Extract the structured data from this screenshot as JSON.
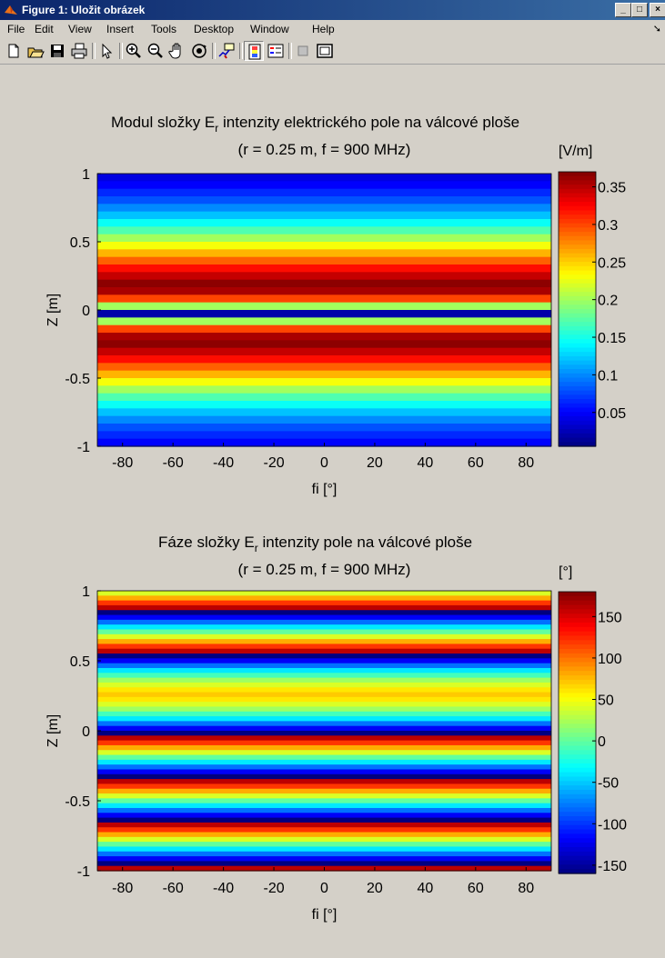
{
  "window": {
    "title": "Figure 1: Uložit obrázek",
    "controls": [
      "_",
      "□",
      "×"
    ]
  },
  "menu": {
    "items": [
      {
        "label": "File"
      },
      {
        "label": "Edit"
      },
      {
        "label": "View"
      },
      {
        "label": "Insert"
      },
      {
        "label": "Tools"
      },
      {
        "label": "Desktop"
      },
      {
        "label": "Window"
      },
      {
        "label": "Help"
      }
    ]
  },
  "toolbar": {
    "icons": [
      "new-figure-icon",
      "open-file-icon",
      "save-figure-icon",
      "print-figure-icon",
      "edit-plot-icon",
      "zoom-in-icon",
      "zoom-out-icon",
      "pan-icon",
      "rotate-3d-icon",
      "data-cursor-icon",
      "insert-colorbar-icon",
      "insert-legend-icon",
      "hide-plot-tools-icon",
      "show-plot-tools-icon"
    ]
  },
  "colors": {
    "window_bg": "#d4d0c8",
    "title_bar": "#0a246a",
    "jet_low": "#00008f",
    "jet_high": "#800000"
  },
  "chart_data": [
    {
      "type": "heatmap",
      "title": "Modul složky E",
      "title_subscript": "r",
      "title_rest": " intenzity elektrického pole na válcové ploše",
      "subtitle": "(r = 0.25 m, f = 900 MHz)",
      "xlabel": "fi [°]",
      "ylabel": "Z [m]",
      "xlim": [
        -90,
        90
      ],
      "ylim": [
        -1,
        1
      ],
      "x_ticks": [
        -80,
        -60,
        -40,
        -20,
        0,
        20,
        40,
        60,
        80
      ],
      "y_ticks": [
        -1,
        -0.5,
        0,
        0.5,
        1
      ],
      "colorbar": {
        "label": "[V/m]",
        "range": [
          0.005,
          0.37
        ],
        "ticks": [
          0.05,
          0.1,
          0.15,
          0.2,
          0.25,
          0.3,
          0.35
        ],
        "colormap": "jet"
      },
      "z_values_top_to_bottom": [
        0.04,
        0.05,
        0.065,
        0.08,
        0.1,
        0.12,
        0.145,
        0.17,
        0.2,
        0.23,
        0.26,
        0.29,
        0.32,
        0.345,
        0.365,
        0.355,
        0.3,
        0.2,
        0.02,
        0.2,
        0.3,
        0.355,
        0.365,
        0.345,
        0.32,
        0.29,
        0.26,
        0.23,
        0.2,
        0.17,
        0.145,
        0.12,
        0.1,
        0.08,
        0.065,
        0.05
      ]
    },
    {
      "type": "heatmap",
      "title": "Fáze složky E",
      "title_subscript": "r",
      "title_rest": " intenzity pole na válcové ploše",
      "subtitle": "(r = 0.25 m, f = 900 MHz)",
      "xlabel": "fi [°]",
      "ylabel": "Z [m]",
      "xlim": [
        -90,
        90
      ],
      "ylim": [
        -1,
        1
      ],
      "x_ticks": [
        -80,
        -60,
        -40,
        -20,
        0,
        20,
        40,
        60,
        80
      ],
      "y_ticks": [
        -1,
        -0.5,
        0,
        0.5,
        1
      ],
      "colorbar": {
        "label": "[°]",
        "range": [
          -160,
          180
        ],
        "ticks": [
          -150,
          -100,
          -50,
          0,
          50,
          100,
          150
        ],
        "colormap": "jet"
      },
      "z_values_top_to_bottom": [
        40,
        80,
        120,
        160,
        -160,
        -120,
        -80,
        -40,
        0,
        40,
        80,
        120,
        160,
        -160,
        -120,
        -80,
        -40,
        -10,
        20,
        40,
        60,
        70,
        60,
        40,
        20,
        -10,
        -40,
        -80,
        -120,
        -160,
        160,
        120,
        80,
        40,
        0,
        -40,
        -80,
        -120,
        -160,
        160,
        120,
        80,
        40,
        0,
        -40,
        -80,
        -120,
        -160,
        160,
        120,
        80,
        40,
        0,
        -40,
        -80,
        -120,
        -160,
        160
      ]
    }
  ]
}
